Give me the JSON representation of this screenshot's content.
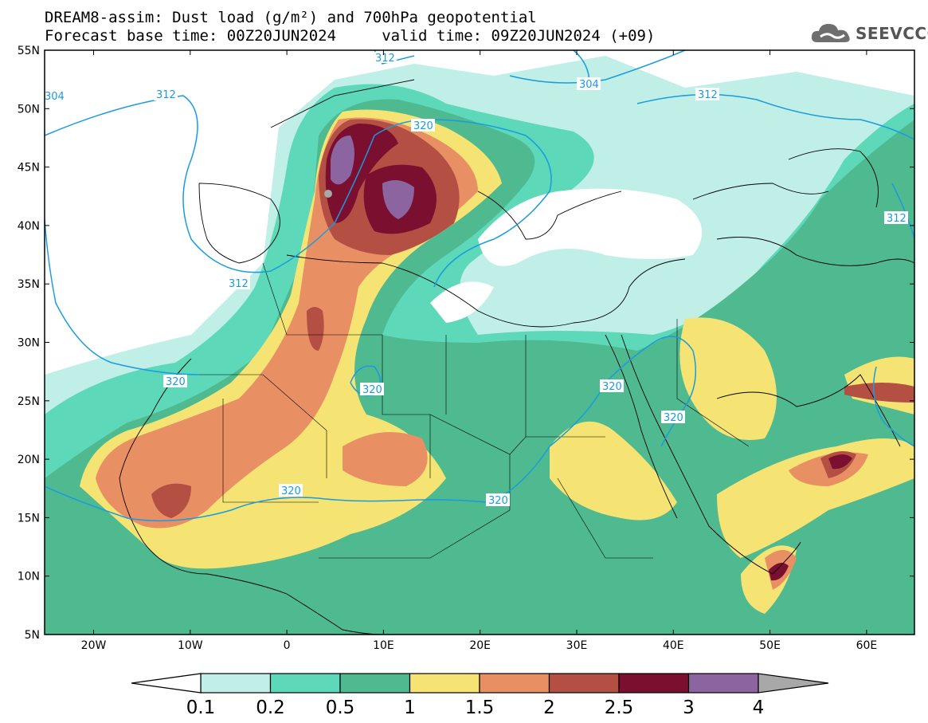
{
  "header": {
    "line1": "DREAM8-assim: Dust load (g/m²) and 700hPa geopotential",
    "line2": "Forecast base time: 00Z20JUN2024     valid time: 09Z20JUN2024 (+09)"
  },
  "logo": {
    "text": "SEEVCCC",
    "icon": "cloud-icon"
  },
  "map": {
    "lat_labels": [
      "55N",
      "50N",
      "45N",
      "40N",
      "35N",
      "30N",
      "25N",
      "20N",
      "15N",
      "10N",
      "5N"
    ],
    "lon_labels": [
      "20W",
      "10W",
      "0",
      "10E",
      "20E",
      "30E",
      "40E",
      "50E",
      "60E"
    ],
    "contour_labels": [
      "312",
      "312",
      "312",
      "312",
      "312",
      "304",
      "304",
      "320",
      "320",
      "320",
      "320",
      "320",
      "320",
      "320"
    ],
    "colors": {
      "c01": "#bfefe6",
      "c02": "#5dd8b8",
      "c05": "#4fb990",
      "c1": "#f5e473",
      "c15": "#e89064",
      "c2": "#b44f43",
      "c25": "#7a0f2f",
      "c3": "#8c65a0",
      "c4": "#a8a8a8",
      "contour": "#1a9be0"
    }
  },
  "colorbar": {
    "labels": [
      "0.1",
      "0.2",
      "0.5",
      "1",
      "1.5",
      "2",
      "2.5",
      "3",
      "4"
    ],
    "colors": [
      "#bfefe6",
      "#5dd8b8",
      "#4fb990",
      "#f5e473",
      "#e89064",
      "#b44f43",
      "#7a0f2f",
      "#8c65a0"
    ]
  }
}
